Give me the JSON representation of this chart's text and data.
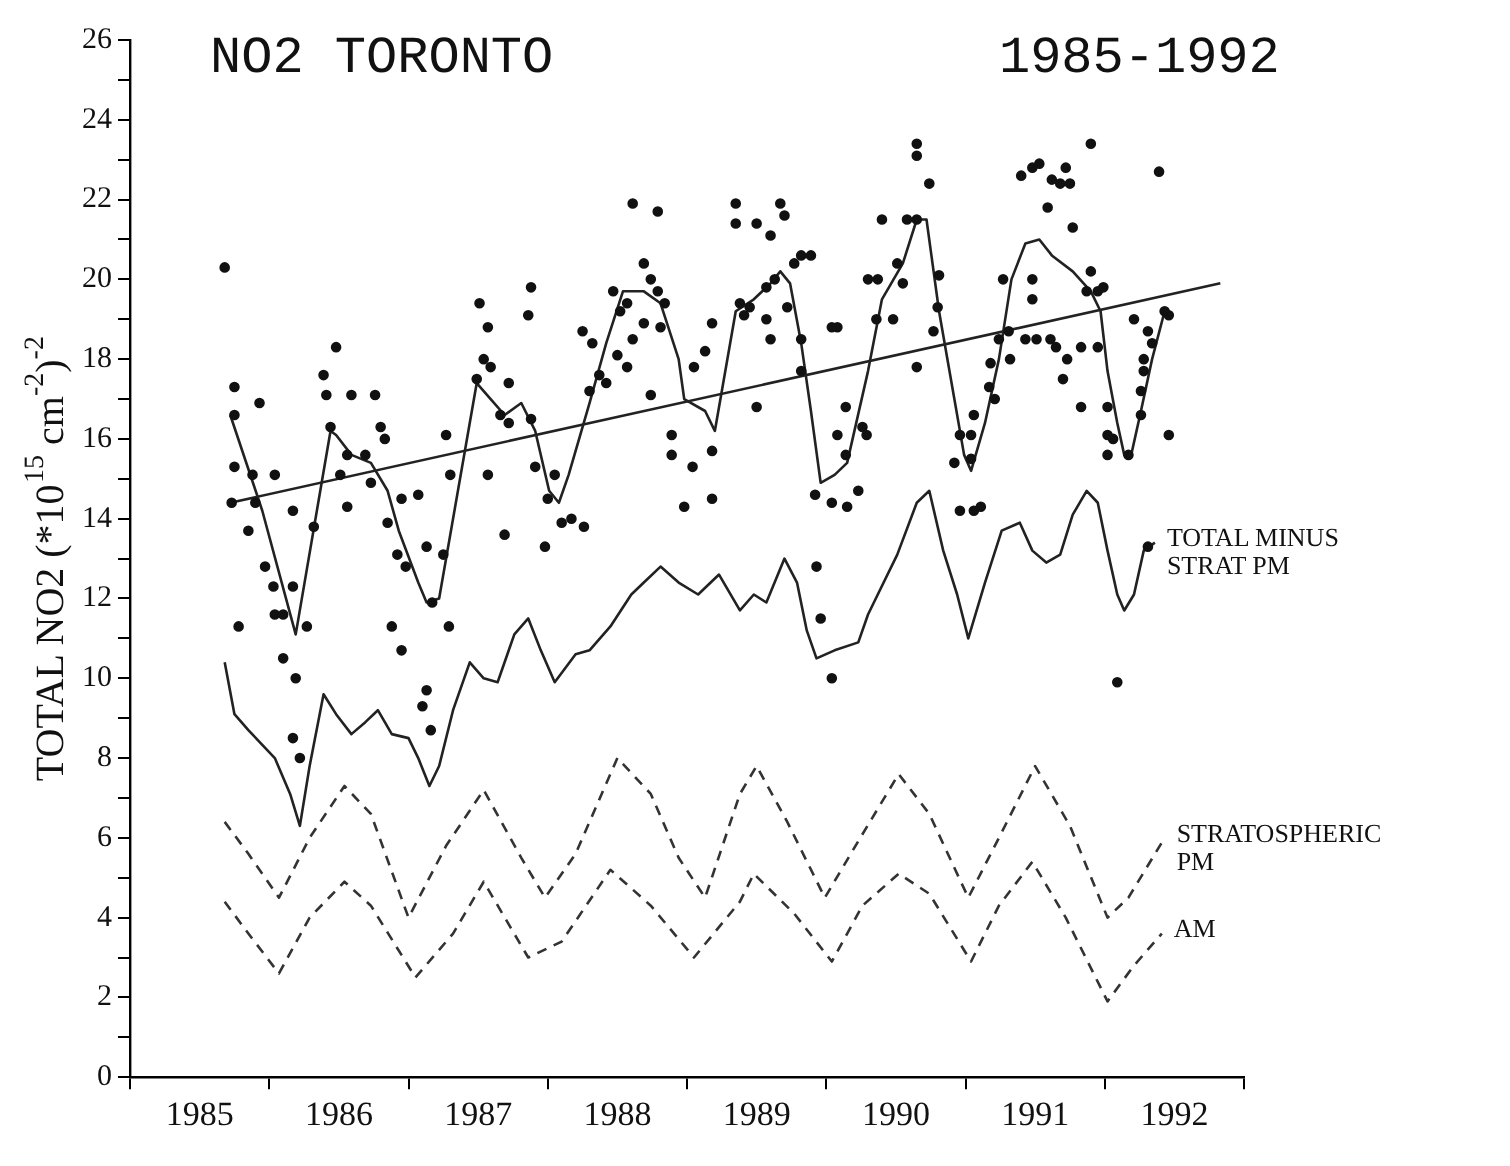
{
  "chart_data": {
    "type": "scatter",
    "title": "NO2 TORONTO",
    "subtitle": "1985-1992",
    "ylabel": "TOTAL NO2 (*10$^{15}$ cm$^{-2}$)$^{-2}$",
    "xlim": [
      1985,
      1993
    ],
    "xticks": [
      {
        "value": 1985,
        "label": null
      },
      {
        "value": 1985.5,
        "label": "1985"
      },
      {
        "value": 1986,
        "label": null
      },
      {
        "value": 1986.5,
        "label": "1986"
      },
      {
        "value": 1987,
        "label": null
      },
      {
        "value": 1987.5,
        "label": "1987"
      },
      {
        "value": 1988,
        "label": null
      },
      {
        "value": 1988.5,
        "label": "1988"
      },
      {
        "value": 1989,
        "label": null
      },
      {
        "value": 1989.5,
        "label": "1989"
      },
      {
        "value": 1990,
        "label": null
      },
      {
        "value": 1990.5,
        "label": "1990"
      },
      {
        "value": 1991,
        "label": null
      },
      {
        "value": 1991.5,
        "label": "1991"
      },
      {
        "value": 1992,
        "label": null
      },
      {
        "value": 1992.5,
        "label": "1992"
      },
      {
        "value": 1993,
        "label": null
      }
    ],
    "ylim": [
      0,
      26
    ],
    "yticks": [
      0,
      {
        "value": 1,
        "label": null
      },
      2,
      {
        "value": 3,
        "label": null
      },
      4,
      {
        "value": 5,
        "label": null
      },
      6,
      {
        "value": 7,
        "label": null
      },
      8,
      {
        "value": 9,
        "label": null
      },
      10,
      {
        "value": 11,
        "label": null
      },
      12,
      {
        "value": 13,
        "label": null
      },
      14,
      {
        "value": 15,
        "label": null
      },
      16,
      {
        "value": 17,
        "label": null
      },
      18,
      {
        "value": 19,
        "label": null
      },
      20,
      {
        "value": 21,
        "label": null
      },
      22,
      {
        "value": 23,
        "label": null
      },
      24,
      {
        "value": 25,
        "label": null
      },
      26
    ],
    "grid": false,
    "legend": false,
    "series": [
      {
        "type": "scatter",
        "marker": "circle",
        "color": "#111111",
        "x": [
          1985.68,
          1985.73,
          1985.75,
          1985.75,
          1985.75,
          1985.78,
          1985.85,
          1985.88,
          1985.9,
          1985.93,
          1985.97,
          1986.03,
          1986.04,
          1986.04,
          1986.1,
          1986.1,
          1986.17,
          1986.17,
          1986.17,
          1986.19,
          1986.22,
          1986.27,
          1986.32,
          1986.39,
          1986.41,
          1986.44,
          1986.48,
          1986.51,
          1986.56,
          1986.56,
          1986.59,
          1986.69,
          1986.73,
          1986.76,
          1986.8,
          1986.83,
          1986.85,
          1986.88,
          1986.92,
          1986.95,
          1986.95,
          1986.98,
          1987.07,
          1987.1,
          1987.13,
          1987.13,
          1987.16,
          1987.17,
          1987.25,
          1987.27,
          1987.29,
          1987.3,
          1987.49,
          1987.51,
          1987.54,
          1987.57,
          1987.57,
          1987.59,
          1987.66,
          1987.69,
          1987.72,
          1987.72,
          1987.86,
          1987.88,
          1987.88,
          1987.91,
          1987.98,
          1988.0,
          1988.05,
          1988.1,
          1988.17,
          1988.26,
          1988.25,
          1988.3,
          1988.32,
          1988.37,
          1988.42,
          1988.47,
          1988.5,
          1988.52,
          1988.57,
          1988.57,
          1988.61,
          1988.61,
          1988.69,
          1988.69,
          1988.74,
          1988.74,
          1988.79,
          1988.79,
          1988.81,
          1988.84,
          1988.89,
          1988.89,
          1988.98,
          1989.04,
          1989.05,
          1989.13,
          1989.18,
          1989.18,
          1989.18,
          1989.35,
          1989.35,
          1989.38,
          1989.41,
          1989.45,
          1989.5,
          1989.5,
          1989.57,
          1989.57,
          1989.6,
          1989.6,
          1989.63,
          1989.67,
          1989.7,
          1989.72,
          1989.77,
          1989.82,
          1989.82,
          1989.82,
          1989.89,
          1989.92,
          1989.93,
          1989.96,
          1990.04,
          1990.04,
          1990.04,
          1990.08,
          1990.08,
          1990.14,
          1990.14,
          1990.15,
          1990.23,
          1990.26,
          1990.29,
          1990.3,
          1990.36,
          1990.37,
          1990.4,
          1990.48,
          1990.51,
          1990.55,
          1990.58,
          1990.65,
          1990.65,
          1990.65,
          1990.65,
          1990.74,
          1990.77,
          1990.8,
          1990.81,
          1990.92,
          1990.96,
          1990.96,
          1991.04,
          1991.04,
          1991.06,
          1991.06,
          1991.11,
          1991.17,
          1991.18,
          1991.21,
          1991.24,
          1991.27,
          1991.31,
          1991.32,
          1991.4,
          1991.43,
          1991.48,
          1991.48,
          1991.48,
          1991.51,
          1991.53,
          1991.59,
          1991.61,
          1991.62,
          1991.65,
          1991.68,
          1991.7,
          1991.72,
          1991.73,
          1991.75,
          1991.77,
          1991.83,
          1991.83,
          1991.87,
          1991.9,
          1991.9,
          1991.95,
          1991.95,
          1991.99,
          1992.02,
          1992.02,
          1992.02,
          1992.06,
          1992.09,
          1992.17,
          1992.21,
          1992.26,
          1992.26,
          1992.28,
          1992.28,
          1992.31,
          1992.31,
          1992.34,
          1992.39,
          1992.43,
          1992.46,
          1992.46
        ],
        "values": [
          20.3,
          14.4,
          17.3,
          16.6,
          15.3,
          11.3,
          13.7,
          15.1,
          14.4,
          16.9,
          12.8,
          12.3,
          15.1,
          11.6,
          11.6,
          10.5,
          12.3,
          14.2,
          8.5,
          10.0,
          8.0,
          11.3,
          13.8,
          17.6,
          17.1,
          16.3,
          18.3,
          15.1,
          15.6,
          14.3,
          17.1,
          15.6,
          14.9,
          17.1,
          16.3,
          16.0,
          13.9,
          11.3,
          13.1,
          14.5,
          10.7,
          12.8,
          14.6,
          9.3,
          13.3,
          9.7,
          8.7,
          11.9,
          13.1,
          16.1,
          11.3,
          15.1,
          17.5,
          19.4,
          18.0,
          18.8,
          15.1,
          17.8,
          16.6,
          13.6,
          17.4,
          16.4,
          19.1,
          19.8,
          16.5,
          15.3,
          13.3,
          14.5,
          15.1,
          13.9,
          14.0,
          13.8,
          18.7,
          17.2,
          18.4,
          17.6,
          17.4,
          19.7,
          18.1,
          19.2,
          19.4,
          17.8,
          21.9,
          18.5,
          20.4,
          18.9,
          20.0,
          17.1,
          21.7,
          19.7,
          18.8,
          19.4,
          16.1,
          15.6,
          14.3,
          15.3,
          17.8,
          18.2,
          18.9,
          15.7,
          14.5,
          21.9,
          21.4,
          19.4,
          19.1,
          19.3,
          21.4,
          16.8,
          19.8,
          19.0,
          21.1,
          18.5,
          20.0,
          21.9,
          21.6,
          19.3,
          20.4,
          20.6,
          18.5,
          17.7,
          20.6,
          14.6,
          12.8,
          11.5,
          18.8,
          14.4,
          10.0,
          18.8,
          16.1,
          16.8,
          15.6,
          14.3,
          14.7,
          16.3,
          16.1,
          20.0,
          19.0,
          20.0,
          21.5,
          19.0,
          20.4,
          19.9,
          21.5,
          23.4,
          23.1,
          21.5,
          17.8,
          22.4,
          18.7,
          19.3,
          20.1,
          15.4,
          16.1,
          14.2,
          16.1,
          15.5,
          16.6,
          14.2,
          14.3,
          17.3,
          17.9,
          17.0,
          18.5,
          20.0,
          18.7,
          18.0,
          22.6,
          18.5,
          22.8,
          20.0,
          19.5,
          18.5,
          22.9,
          21.8,
          18.5,
          22.5,
          18.3,
          22.4,
          17.5,
          22.8,
          18.0,
          22.4,
          21.3,
          18.3,
          16.8,
          19.7,
          23.4,
          20.2,
          19.7,
          18.3,
          19.8,
          16.8,
          16.1,
          15.6,
          16.0,
          9.9,
          15.6,
          19.0,
          17.2,
          16.6,
          18.0,
          17.7,
          18.7,
          13.3,
          18.4,
          22.7,
          19.2,
          19.1,
          16.1
        ]
      },
      {
        "type": "line",
        "marker": "none",
        "line_style": "solid",
        "color": "#222222",
        "x": [
          1985.72,
          1985.95,
          1986.19,
          1986.44,
          1986.48,
          1986.59,
          1986.73,
          1986.85,
          1986.93,
          1987.07,
          1987.13,
          1987.22,
          1987.49,
          1987.59,
          1987.69,
          1987.81,
          1987.91,
          1988.01,
          1988.08,
          1988.15,
          1988.3,
          1988.42,
          1988.54,
          1988.69,
          1988.81,
          1988.94,
          1988.98,
          1989.13,
          1989.2,
          1989.35,
          1989.48,
          1989.6,
          1989.67,
          1989.74,
          1989.82,
          1989.89,
          1989.96,
          1990.06,
          1990.15,
          1990.3,
          1990.4,
          1990.55,
          1990.65,
          1990.72,
          1990.81,
          1990.92,
          1990.99,
          1991.04,
          1991.14,
          1991.24,
          1991.33,
          1991.43,
          1991.53,
          1991.62,
          1991.77,
          1991.9,
          1991.97,
          1992.02,
          1992.09,
          1992.14,
          1992.19,
          1992.26,
          1992.34,
          1992.43
        ],
        "values": [
          16.6,
          14.2,
          11.1,
          16.2,
          16.1,
          15.6,
          15.4,
          14.7,
          13.7,
          12.4,
          11.9,
          12.0,
          17.4,
          17.0,
          16.6,
          16.9,
          16.2,
          14.7,
          14.4,
          15.1,
          16.9,
          18.4,
          19.7,
          19.7,
          19.4,
          18.0,
          17.0,
          16.7,
          16.2,
          19.2,
          19.5,
          19.9,
          20.2,
          19.9,
          18.4,
          16.7,
          14.9,
          15.1,
          15.4,
          17.7,
          19.5,
          20.4,
          21.5,
          21.5,
          19.2,
          17.0,
          15.6,
          15.2,
          16.4,
          18.0,
          20.0,
          20.9,
          21.0,
          20.6,
          20.2,
          19.7,
          19.2,
          17.7,
          16.4,
          15.6,
          15.6,
          16.7,
          18.0,
          19.2
        ]
      },
      {
        "type": "line",
        "marker": "none",
        "line_style": "solid",
        "color": "#222222",
        "x": [
          1985.72,
          1992.83
        ],
        "values": [
          14.4,
          19.9
        ]
      },
      {
        "type": "line",
        "marker": "none",
        "line_style": "solid",
        "color": "#222222",
        "name": "TOTAL MINUS STRAT PM",
        "x": [
          1985.68,
          1985.75,
          1985.85,
          1986.04,
          1986.15,
          1986.22,
          1986.29,
          1986.39,
          1986.48,
          1986.59,
          1986.69,
          1986.78,
          1986.88,
          1987.0,
          1987.07,
          1987.15,
          1987.22,
          1987.32,
          1987.44,
          1987.54,
          1987.64,
          1987.76,
          1987.86,
          1987.95,
          1988.05,
          1988.2,
          1988.3,
          1988.45,
          1988.6,
          1988.69,
          1988.81,
          1988.94,
          1989.08,
          1989.23,
          1989.38,
          1989.48,
          1989.57,
          1989.7,
          1989.79,
          1989.86,
          1989.93,
          1990.06,
          1990.23,
          1990.3,
          1990.37,
          1990.51,
          1990.65,
          1990.74,
          1990.84,
          1990.94,
          1991.02,
          1991.14,
          1991.26,
          1991.39,
          1991.48,
          1991.58,
          1991.68,
          1991.77,
          1991.87,
          1991.95,
          1992.02,
          1992.09,
          1992.14,
          1992.21,
          1992.28,
          1992.36
        ],
        "values": [
          10.4,
          9.1,
          8.7,
          8.0,
          7.1,
          6.3,
          7.8,
          9.6,
          9.1,
          8.6,
          8.9,
          9.2,
          8.6,
          8.5,
          8.0,
          7.3,
          7.8,
          9.2,
          10.4,
          10.0,
          9.9,
          11.1,
          11.5,
          10.7,
          9.9,
          10.6,
          10.7,
          11.3,
          12.1,
          12.4,
          12.8,
          12.4,
          12.1,
          12.6,
          11.7,
          12.1,
          11.9,
          13.0,
          12.4,
          11.2,
          10.5,
          10.7,
          10.9,
          11.6,
          12.1,
          13.1,
          14.4,
          14.7,
          13.2,
          12.1,
          11.0,
          12.4,
          13.7,
          13.9,
          13.2,
          12.9,
          13.1,
          14.1,
          14.7,
          14.4,
          13.2,
          12.1,
          11.7,
          12.1,
          13.2,
          13.4
        ]
      },
      {
        "type": "line",
        "marker": "none",
        "line_style": "dashed",
        "color": "#333333",
        "name": "STRATOSPHERIC PM",
        "x": [
          1985.68,
          1985.85,
          1986.07,
          1986.29,
          1986.54,
          1986.73,
          1987.0,
          1987.27,
          1987.54,
          1987.81,
          1987.98,
          1988.2,
          1988.5,
          1988.74,
          1988.94,
          1989.13,
          1989.38,
          1989.5,
          1989.72,
          1989.99,
          1990.21,
          1990.52,
          1990.74,
          1991.02,
          1991.24,
          1991.5,
          1991.75,
          1992.02,
          1992.17,
          1992.43
        ],
        "values": [
          6.4,
          5.6,
          4.5,
          6.0,
          7.3,
          6.6,
          4.0,
          5.8,
          7.2,
          5.5,
          4.5,
          5.6,
          8.0,
          7.1,
          5.5,
          4.5,
          7.1,
          7.8,
          6.4,
          4.5,
          5.8,
          7.6,
          6.6,
          4.5,
          6.0,
          7.8,
          6.3,
          4.0,
          4.5,
          6.0
        ]
      },
      {
        "type": "line",
        "marker": "none",
        "line_style": "dashed",
        "color": "#333333",
        "name": "AM",
        "x": [
          1985.68,
          1985.85,
          1986.07,
          1986.29,
          1986.54,
          1986.73,
          1987.05,
          1987.32,
          1987.54,
          1987.86,
          1988.1,
          1988.45,
          1988.74,
          1989.05,
          1989.38,
          1989.48,
          1989.77,
          1990.04,
          1990.26,
          1990.52,
          1990.74,
          1991.04,
          1991.24,
          1991.48,
          1991.72,
          1992.02,
          1992.21,
          1992.41
        ],
        "values": [
          4.4,
          3.6,
          2.6,
          4.0,
          4.9,
          4.3,
          2.5,
          3.6,
          4.9,
          3.0,
          3.4,
          5.2,
          4.3,
          3.0,
          4.4,
          5.1,
          4.1,
          2.9,
          4.3,
          5.1,
          4.6,
          2.9,
          4.3,
          5.4,
          4.0,
          1.9,
          2.8,
          3.6
        ]
      }
    ]
  }
}
